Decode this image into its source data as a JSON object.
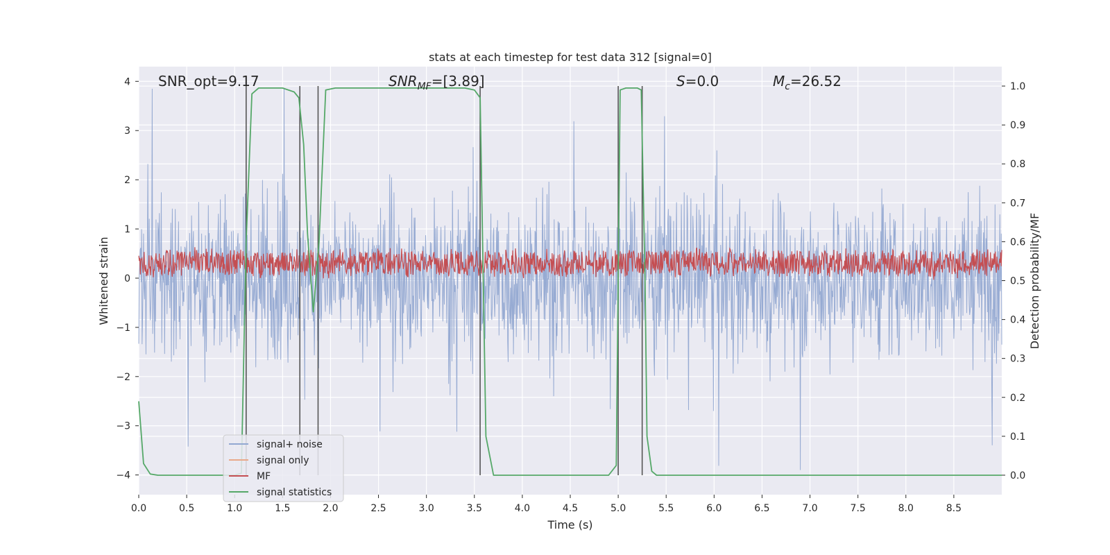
{
  "chart_data": {
    "type": "line",
    "title": "stats at each timestep for test data 312 [signal=0]",
    "xlabel": "Time (s)",
    "ylabel_left": "Whitened strain",
    "ylabel_right": "Detection probability/MF",
    "xlim": [
      0.0,
      9.0
    ],
    "ylim_left": [
      -4.4,
      4.3
    ],
    "ylim_right": [
      -0.05,
      1.05
    ],
    "grid": true,
    "x_ticks": [
      "0.0",
      "0.5",
      "1.0",
      "1.5",
      "2.0",
      "2.5",
      "3.0",
      "3.5",
      "4.0",
      "4.5",
      "5.0",
      "5.5",
      "6.0",
      "6.5",
      "7.0",
      "7.5",
      "8.0",
      "8.5"
    ],
    "y_left_ticks": [
      "4",
      "3",
      "2",
      "1",
      "0",
      "−1",
      "−2",
      "−3",
      "−4"
    ],
    "y_right_ticks": [
      "1.0",
      "0.9",
      "0.8",
      "0.7",
      "0.6",
      "0.5",
      "0.4",
      "0.3",
      "0.2",
      "0.1",
      "0.0"
    ],
    "annotations": {
      "snr_opt": "SNR_opt=9.17",
      "snr_mf_base": "SNR",
      "snr_mf_sub": "MF",
      "snr_mf_rest": "=[3.89]",
      "s_var": "S",
      "s_rest": "=0.0",
      "mc_var": "M",
      "mc_sub": "c",
      "mc_rest": "=26.52"
    },
    "legend": {
      "placement": "lower-left",
      "entries": [
        {
          "label": "signal+ noise",
          "color": "#92a8d1"
        },
        {
          "label": "signal only",
          "color": "#e9a98a"
        },
        {
          "label": "MF",
          "color": "#c44e52"
        },
        {
          "label": "signal statistics",
          "color": "#55a868"
        }
      ]
    },
    "series": [
      {
        "name": "signal+ noise",
        "axis": "left",
        "color": "#92a8d1",
        "description": "dense noise trace, roughly within ±2 with spikes to ±3.8"
      },
      {
        "name": "MF",
        "axis": "right",
        "color": "#c44e52",
        "description": "matched-filter band oscillating about 0.50–0.59"
      },
      {
        "name": "signal statistics",
        "axis": "right",
        "color": "#55a868",
        "x": [
          0.0,
          0.05,
          0.12,
          0.2,
          0.4,
          0.8,
          1.0,
          1.07,
          1.12,
          1.18,
          1.25,
          1.35,
          1.5,
          1.62,
          1.67,
          1.72,
          1.76,
          1.82,
          1.88,
          1.95,
          2.05,
          3.4,
          3.5,
          3.56,
          3.62,
          3.7,
          3.8,
          4.5,
          4.9,
          4.98,
          5.02,
          5.08,
          5.2,
          5.24,
          5.28,
          5.3,
          5.35,
          5.4,
          6.0,
          7.2,
          8.0,
          9.0
        ],
        "y": [
          0.19,
          0.03,
          0.003,
          0.0,
          0.0,
          0.0,
          0.0,
          0.005,
          0.6,
          0.98,
          0.995,
          0.995,
          0.995,
          0.985,
          0.97,
          0.85,
          0.62,
          0.42,
          0.6,
          0.99,
          0.995,
          0.995,
          0.99,
          0.97,
          0.1,
          0.0,
          0.0,
          0.0,
          0.0,
          0.025,
          0.99,
          0.995,
          0.995,
          0.99,
          0.5,
          0.1,
          0.01,
          0.0,
          0.0,
          0.0,
          0.0,
          0.0
        ]
      }
    ],
    "vertical_lines_x": [
      1.12,
      1.68,
      1.87,
      3.56,
      5.0,
      5.25
    ]
  }
}
